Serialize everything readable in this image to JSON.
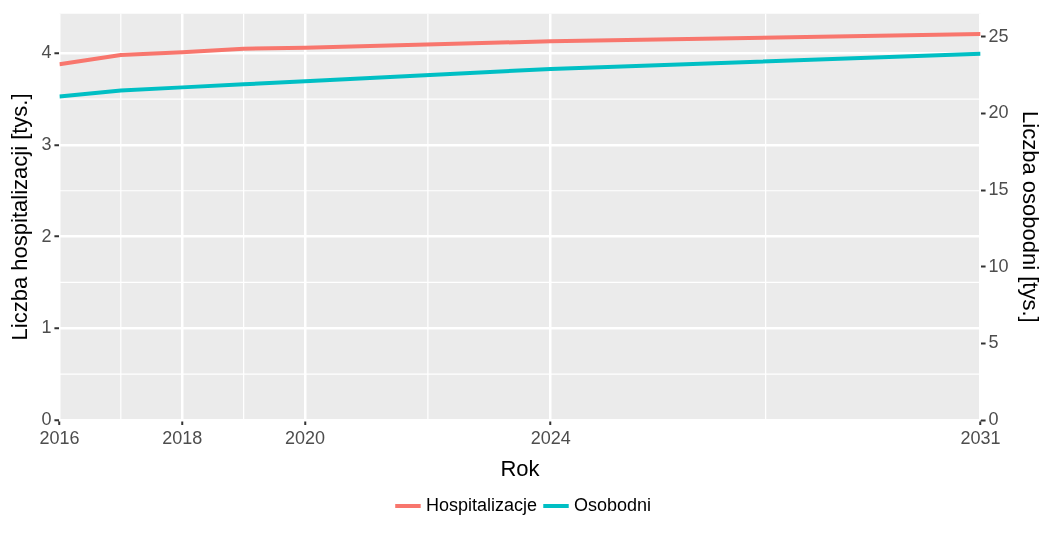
{
  "chart_data": {
    "type": "line",
    "xlabel": "Rok",
    "ylabel": "Liczba hospitalizacji [tys.]",
    "y2label": "Liczba osobodni [tys.]",
    "x": [
      2016,
      2017,
      2018,
      2019,
      2020,
      2024,
      2031
    ],
    "series": [
      {
        "name": "Hospitalizacje",
        "color": "#f8766d",
        "values": [
          3.88,
          3.98,
          4.01,
          4.05,
          4.06,
          4.13,
          4.21
        ]
      },
      {
        "name": "Osobodni",
        "color": "#00bfc4",
        "axis": "y2",
        "values": [
          21.1,
          21.5,
          21.7,
          21.9,
          22.1,
          22.9,
          23.9
        ]
      }
    ],
    "xlim": [
      2016,
      2031
    ],
    "xticks": [
      2016,
      2018,
      2020,
      2024,
      2031
    ],
    "ylim": [
      0,
      4.43
    ],
    "yticks": [
      0,
      1,
      2,
      3,
      4
    ],
    "y2lim": [
      0,
      26.5
    ],
    "y2ticks": [
      0,
      5,
      10,
      15,
      20,
      25
    ],
    "grid": true,
    "legend": "bottom",
    "marker": "none",
    "line_style": "solid"
  }
}
